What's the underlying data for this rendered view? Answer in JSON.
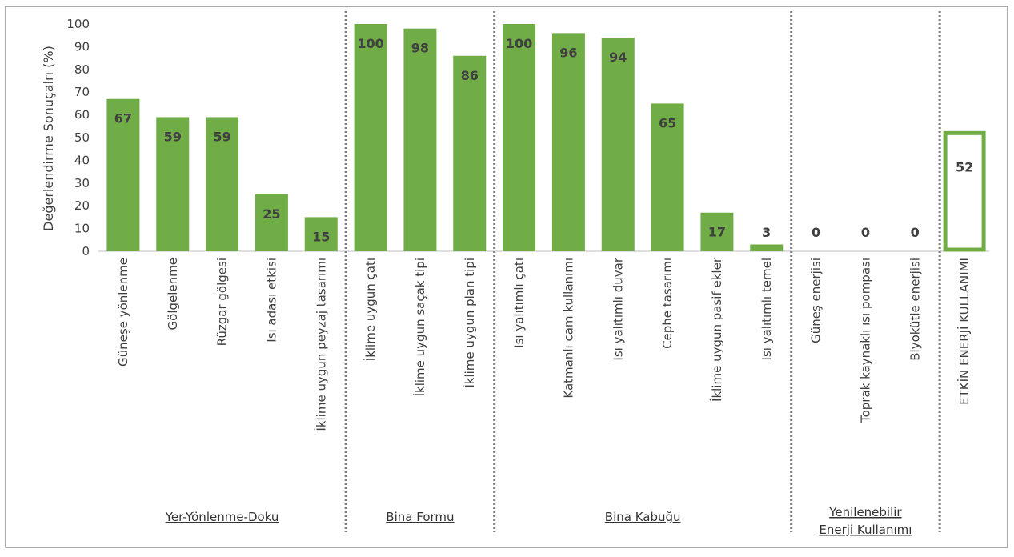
{
  "chart_data": {
    "type": "bar",
    "title": "",
    "xlabel": "",
    "ylabel": "Değerlendirme Sonuçalrı (%)",
    "ylim": [
      0,
      100
    ],
    "yticks": [
      0,
      10,
      20,
      30,
      40,
      50,
      60,
      70,
      80,
      90,
      100
    ],
    "grid": false,
    "bar_color": "#70ad47",
    "categories": [
      "Güneşe yönlenme",
      "Gölgelenme",
      "Rüzgar gölgesi",
      "Isı adası etkisi",
      "İklime uygun peyzaj tasarımı",
      "İklime uygun çatı",
      "İklime uygun saçak tipi",
      "İklime uygun plan tipi",
      "Isı yalıtımlı çatı",
      "Katmanlı cam kullanımı",
      "Isı yalıtımlı duvar",
      "Cephe tasarımı",
      "İklime uygun pasif ekler",
      "Isı yalıtımlı temel",
      "Güneş enerjisi",
      "Toprak kaynaklı ısı pompası",
      "Biyokütle enerjisi",
      "ETKİN ENERJİ KULLANIMI"
    ],
    "values": [
      67,
      59,
      59,
      25,
      15,
      100,
      98,
      86,
      100,
      96,
      94,
      65,
      17,
      3,
      0,
      0,
      0,
      52
    ],
    "groups": [
      {
        "label_lines": [
          "Yer-Yönlenme-Doku"
        ],
        "count": 5
      },
      {
        "label_lines": [
          "Bina Formu"
        ],
        "count": 3
      },
      {
        "label_lines": [
          "Bina Kabuğu"
        ],
        "count": 6
      },
      {
        "label_lines": [
          "Yenilenebilir",
          "Enerji Kullanımı"
        ],
        "count": 3
      },
      {
        "label_lines": [],
        "count": 1
      }
    ],
    "outlined_total_index": 17
  }
}
